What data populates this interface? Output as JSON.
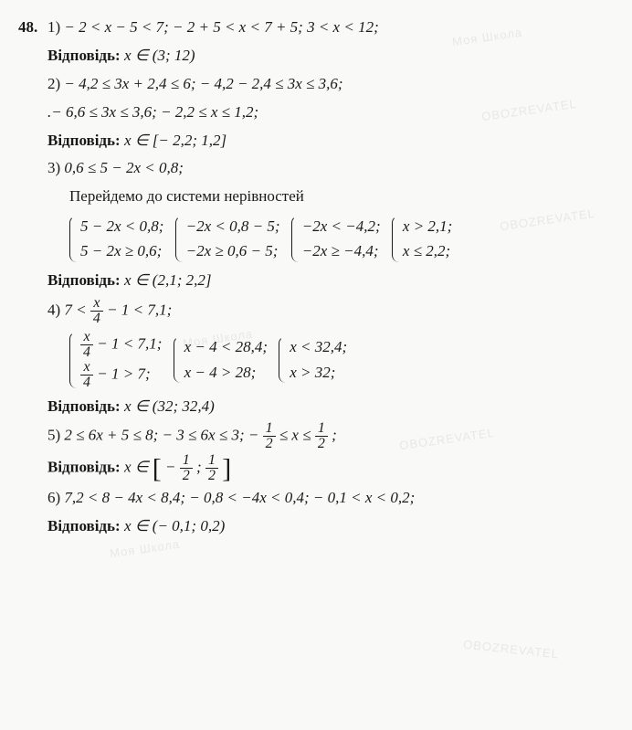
{
  "problemNumber": "48.",
  "watermark": "OBOZREVATEL",
  "watermarkAlt": "Моя Школа",
  "answerLabel": "Відповідь:",
  "items": {
    "p1": {
      "num": "1)",
      "line": "− 2 < x − 5 < 7;   − 2 + 5 < x < 7 + 5;   3 < x < 12;",
      "ans": "x ∈ (3; 12)"
    },
    "p2": {
      "num": "2)",
      "line1": "− 4,2 ≤ 3x + 2,4 ≤ 6;   − 4,2 − 2,4 ≤ 3x ≤ 3,6;",
      "line2": ".− 6,6 ≤ 3x ≤ 3,6;   − 2,2 ≤ x ≤ 1,2;",
      "ans": "x ∈ [− 2,2; 1,2]"
    },
    "p3": {
      "num": "3)",
      "line1": "0,6 ≤ 5 − 2x < 0,8;",
      "line2": "Перейдемо до системи нерівностей",
      "s1a": "5 − 2x < 0,8;",
      "s1b": "5 − 2x ≥ 0,6;",
      "s2a": "−2x < 0,8 − 5;",
      "s2b": "−2x ≥ 0,6 − 5;",
      "s3a": "−2x < −4,2;",
      "s3b": "−2x ≥ −4,4;",
      "s4a": "x > 2,1;",
      "s4b": "x ≤ 2,2;",
      "ans": "x ∈ (2,1; 2,2]"
    },
    "p4": {
      "num": "4)",
      "l1a": "7 < ",
      "l1b": " − 1 < 7,1;",
      "s1aL": "",
      "s1aR": " − 1 < 7,1;",
      "s1bL": "",
      "s1bR": " − 1 > 7;",
      "s2a": "x − 4 < 28,4;",
      "s2b": "x − 4 > 28;",
      "s3a": "x < 32,4;",
      "s3b": "x > 32;",
      "fracN": "x",
      "fracD": "4",
      "ans": "x ∈ (32; 32,4)"
    },
    "p5": {
      "num": "5)",
      "line": "2 ≤ 6x + 5 ≤ 8;   − 3 ≤ 6x ≤ 3;   ",
      "rngL": "− ",
      "rngM": " ≤ x ≤ ",
      "fracN": "1",
      "fracD": "2",
      "ansL": "x ∈ ",
      "ansOpen": "[",
      "ansSep": "; ",
      "ansClose": "]",
      "ansNegPre": "− "
    },
    "p6": {
      "num": "6)",
      "line": "7,2 < 8 − 4x < 8,4;   − 0,8 < −4x < 0,4;   − 0,1 < x < 0,2;",
      "ans": "x ∈ (− 0,1; 0,2)"
    }
  }
}
